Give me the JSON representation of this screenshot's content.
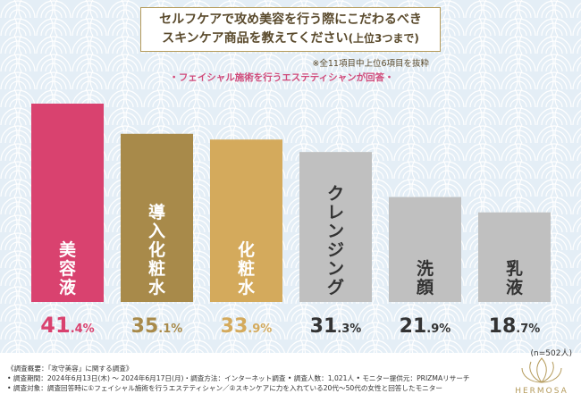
{
  "header": {
    "title_line1": "セルフケアで攻め美容を行う際にこだわるべき",
    "title_line2": "スキンケア商品を教えてください",
    "title_line2_small": "(上位3つまで)",
    "note": "※全11項目中上位6項目を抜粋",
    "subtitle": "フェイシャル施術を行うエステティシャンが回答",
    "subtitle_dot": "・"
  },
  "chart_data": {
    "type": "bar",
    "title": "セルフケアで攻め美容を行う際にこだわるべきスキンケア商品を教えてください(上位3つまで)",
    "categories": [
      "美容液",
      "導入化粧水",
      "化粧水",
      "クレンジング",
      "洗顔",
      "乳液"
    ],
    "values": [
      41.4,
      35.1,
      33.9,
      31.3,
      21.9,
      18.7
    ],
    "value_labels": [
      {
        "int": "41",
        "dec": ".4",
        "pct": "%"
      },
      {
        "int": "35",
        "dec": ".1",
        "pct": "%"
      },
      {
        "int": "33",
        "dec": ".9",
        "pct": "%"
      },
      {
        "int": "31",
        "dec": ".3",
        "pct": "%"
      },
      {
        "int": "21",
        "dec": ".9",
        "pct": "%"
      },
      {
        "int": "18",
        "dec": ".7",
        "pct": "%"
      }
    ],
    "unit": "%",
    "ylim": [
      0,
      41.4
    ],
    "colors": [
      "#d9426f",
      "#a88a4a",
      "#d4aa5c",
      "#c0c0c0",
      "#c0c0c0",
      "#c0c0c0"
    ],
    "label_colors": [
      "#d9426f",
      "#a88a4a",
      "#d4aa5c",
      "#333333",
      "#333333",
      "#333333"
    ],
    "sample": "(n=502人)"
  },
  "footer": {
    "line1": "《調査概要：「攻守美容」に関する調査》",
    "line2": "• 調査期間：2024年6月13日(木) ～ 2024年6月17日(月)・調査方法：インターネット調査 • 調査人数：1,021人 • モニター提供元：PRIZMAリサーチ",
    "line3": "• 調査対象：調査回答時に①フェイシャル施術を行うエステティシャン／②スキンケアに力を入れている20代〜50代の女性と回答したモニター"
  },
  "brand": {
    "logo_text": "HERMOSA",
    "accent": "#b49a5a"
  }
}
